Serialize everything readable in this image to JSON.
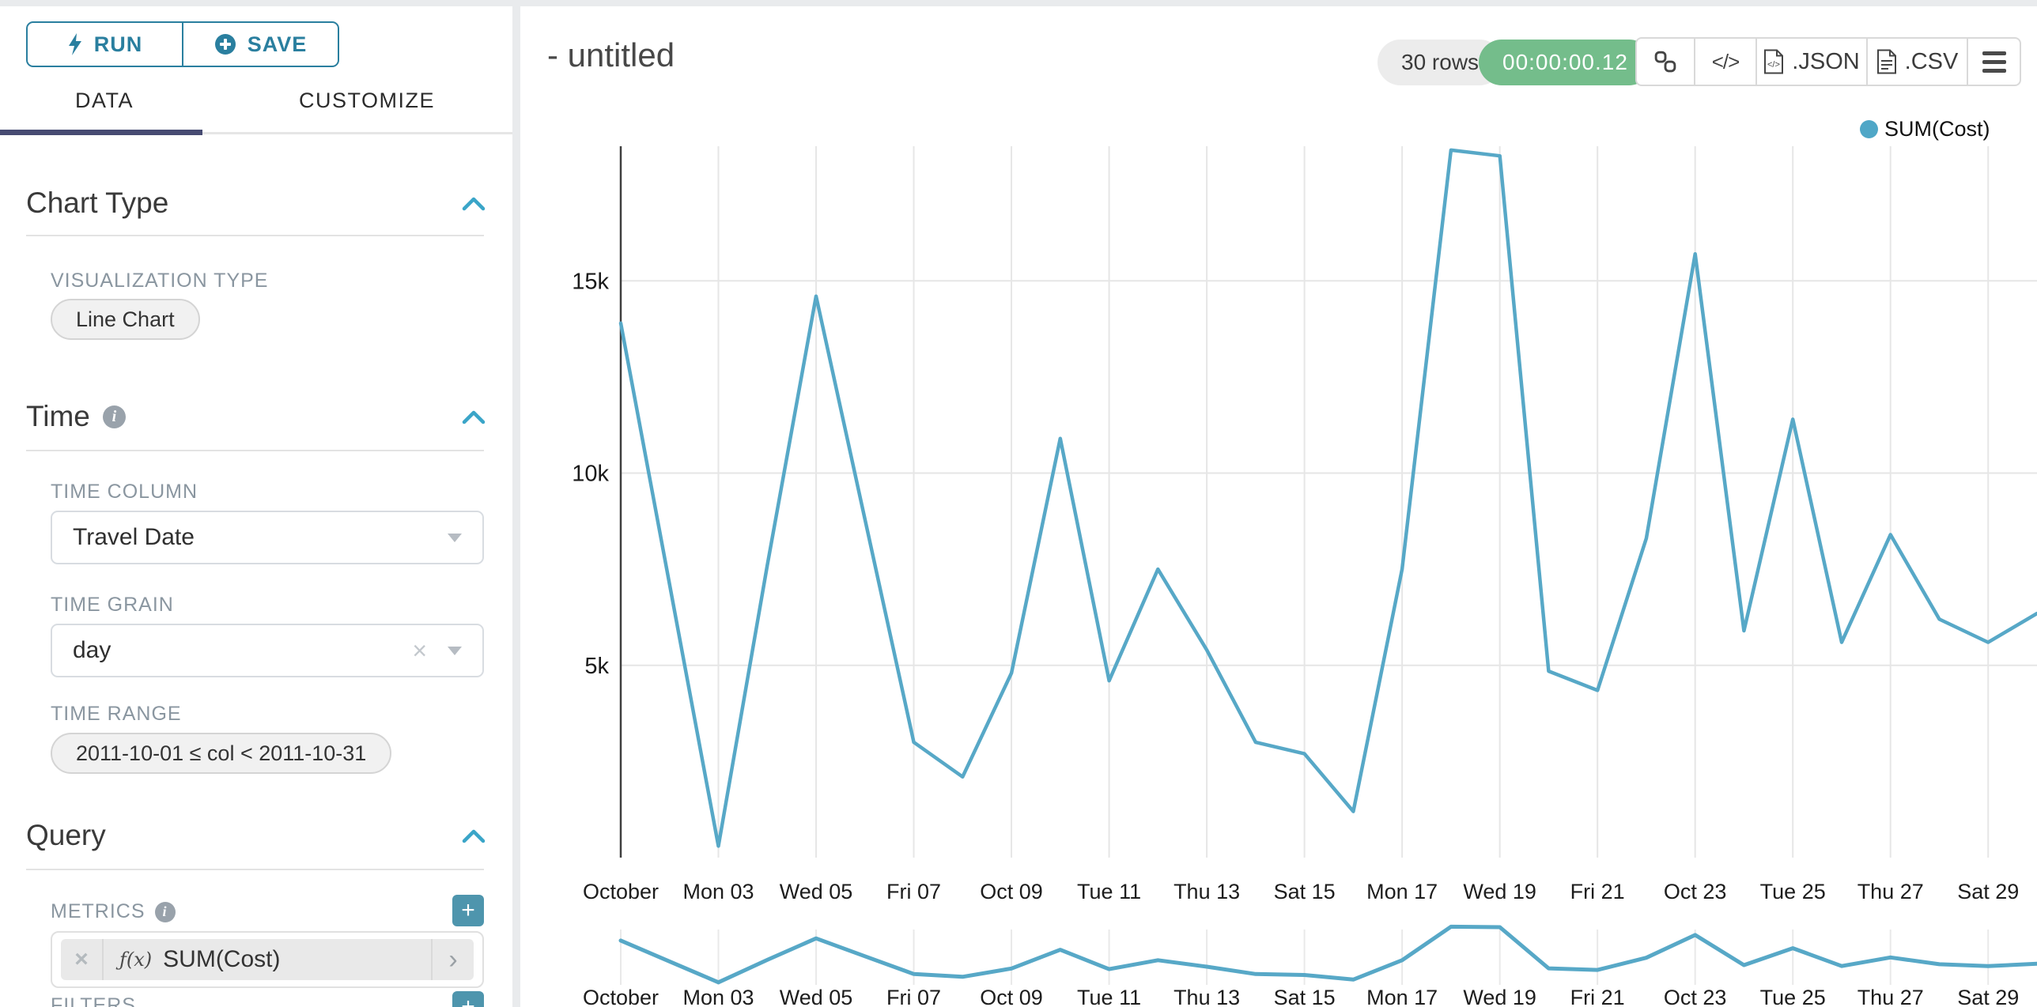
{
  "colors": {
    "accent_teal": "#2a7f9f",
    "accent_light": "#3aa5c8",
    "plus_button": "#4e95ad",
    "tab_underline": "#474b72",
    "timer_green": "#74bd8b",
    "line": "#57a8c7",
    "grid": "#e6e6e6",
    "axis": "#3f3f3f"
  },
  "sidebar": {
    "run_label": "RUN",
    "save_label": "SAVE",
    "tabs": [
      {
        "label": "DATA",
        "active": true
      },
      {
        "label": "CUSTOMIZE",
        "active": false
      }
    ],
    "chart_type": {
      "title": "Chart Type",
      "viz_label": "VISUALIZATION TYPE",
      "viz_value": "Line Chart"
    },
    "time": {
      "title": "Time",
      "column_label": "TIME COLUMN",
      "column_value": "Travel Date",
      "grain_label": "TIME GRAIN",
      "grain_value": "day",
      "range_label": "TIME RANGE",
      "range_value": "2011-10-01 ≤ col < 2011-10-31"
    },
    "query": {
      "title": "Query",
      "metrics_label": "METRICS",
      "metric_fx": "ƒ(x)",
      "metric_value": "SUM(Cost)",
      "filters_label": "FILTERS"
    }
  },
  "header": {
    "title": "- untitled",
    "rows_badge": "30 rows",
    "timer": "00:00:00.12",
    "export_json": ".JSON",
    "export_csv": ".CSV"
  },
  "chart_data": {
    "type": "line",
    "legend": "SUM(Cost)",
    "color": "#57a8c7",
    "grid": true,
    "legend_position": "top-right",
    "ylim": [
      0,
      18500
    ],
    "y_ticks": [
      {
        "value": 5000,
        "label": "5k"
      },
      {
        "value": 10000,
        "label": "10k"
      },
      {
        "value": 15000,
        "label": "15k"
      }
    ],
    "x_tick_labels": [
      {
        "day": 1,
        "label": "October"
      },
      {
        "day": 3,
        "label": "Mon 03"
      },
      {
        "day": 5,
        "label": "Wed 05"
      },
      {
        "day": 7,
        "label": "Fri 07"
      },
      {
        "day": 9,
        "label": "Oct 09"
      },
      {
        "day": 11,
        "label": "Tue 11"
      },
      {
        "day": 13,
        "label": "Thu 13"
      },
      {
        "day": 15,
        "label": "Sat 15"
      },
      {
        "day": 17,
        "label": "Mon 17"
      },
      {
        "day": 19,
        "label": "Wed 19"
      },
      {
        "day": 21,
        "label": "Fri 21"
      },
      {
        "day": 23,
        "label": "Oct 23"
      },
      {
        "day": 25,
        "label": "Tue 25"
      },
      {
        "day": 27,
        "label": "Thu 27"
      },
      {
        "day": 29,
        "label": "Sat 29"
      }
    ],
    "dates": [
      "2011-10-01",
      "2011-10-02",
      "2011-10-03",
      "2011-10-04",
      "2011-10-05",
      "2011-10-06",
      "2011-10-07",
      "2011-10-08",
      "2011-10-09",
      "2011-10-10",
      "2011-10-11",
      "2011-10-12",
      "2011-10-13",
      "2011-10-14",
      "2011-10-15",
      "2011-10-16",
      "2011-10-17",
      "2011-10-18",
      "2011-10-19",
      "2011-10-20",
      "2011-10-21",
      "2011-10-22",
      "2011-10-23",
      "2011-10-24",
      "2011-10-25",
      "2011-10-26",
      "2011-10-27",
      "2011-10-28",
      "2011-10-29",
      "2011-10-30"
    ],
    "values": [
      13900,
      7100,
      300,
      7600,
      14600,
      8800,
      3000,
      2100,
      4800,
      10900,
      4600,
      7500,
      5400,
      3000,
      2700,
      1200,
      7500,
      18400,
      18250,
      4850,
      4350,
      8300,
      15700,
      5900,
      11400,
      5600,
      8400,
      6200,
      5600,
      6350
    ],
    "has_mini_context_chart": true
  }
}
